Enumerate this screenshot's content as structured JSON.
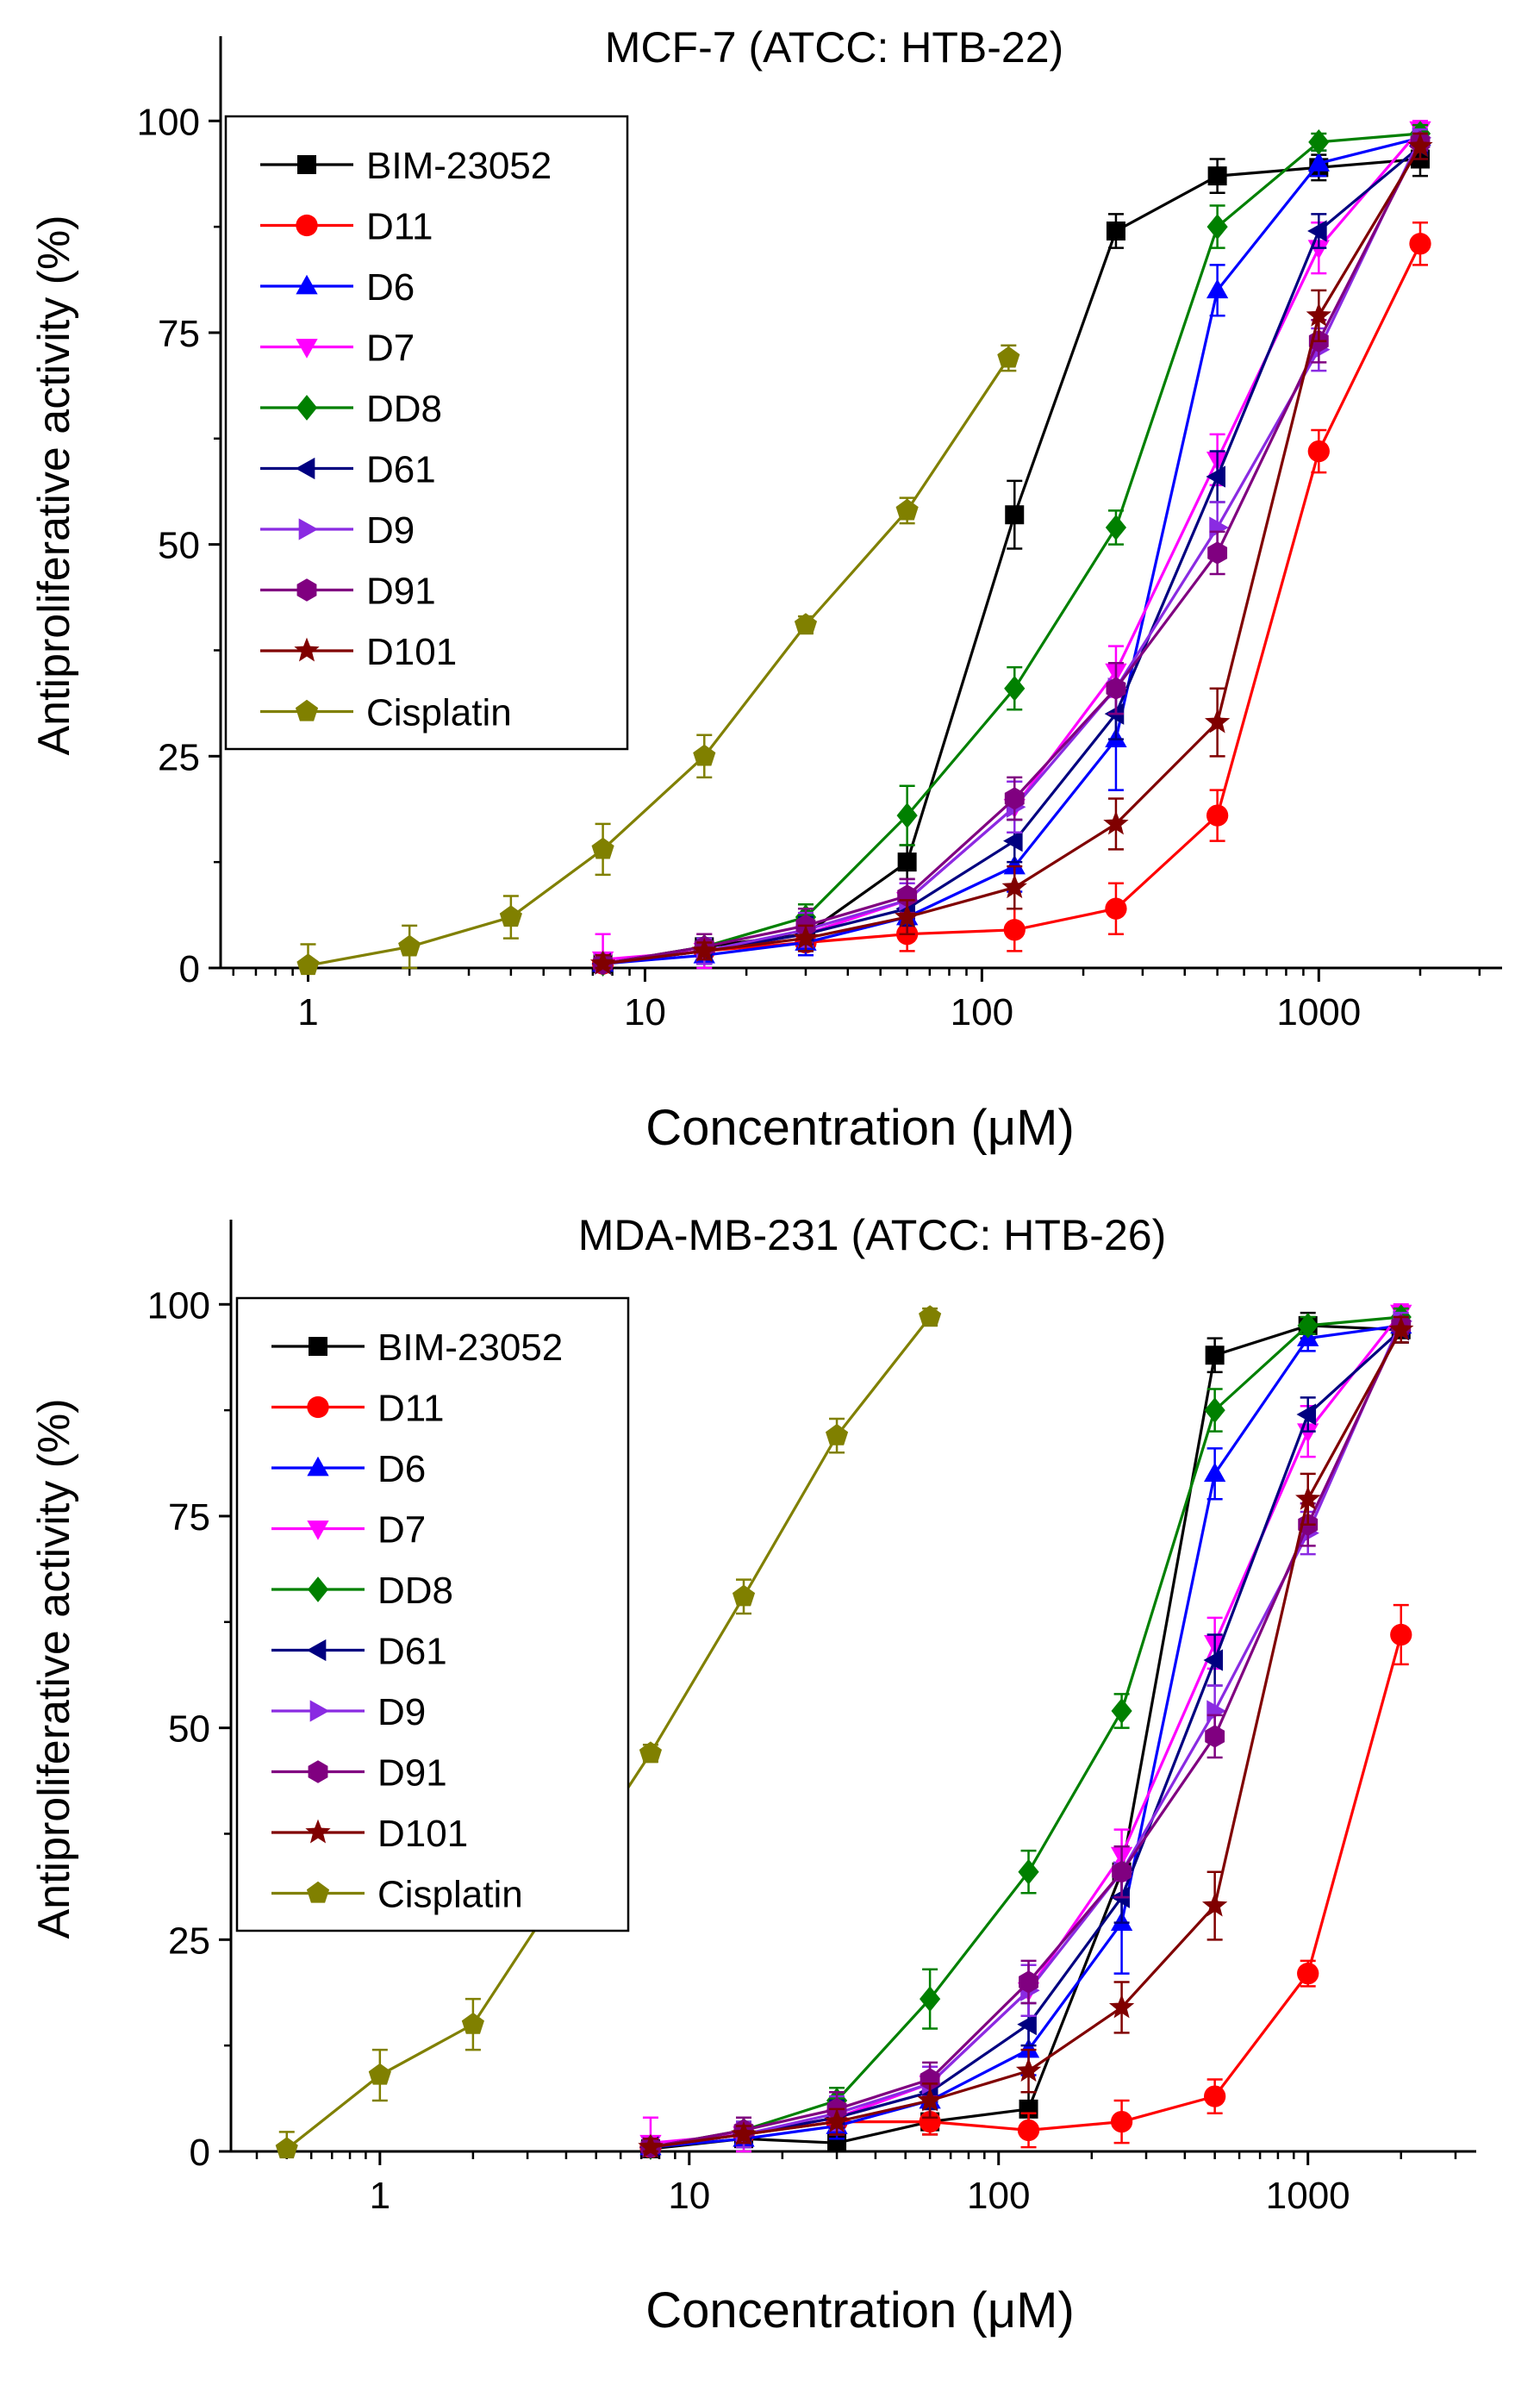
{
  "chart_data": [
    {
      "type": "line",
      "title": "MCF-7 (ATCC: HTB-22)",
      "xlabel": "Concentration (μM)",
      "ylabel": "Antiproliferative activity (%)",
      "xscale": "log",
      "xlim": [
        0.55,
        3500
      ],
      "ylim": [
        0,
        110
      ],
      "xticks": [
        1,
        10,
        100,
        1000
      ],
      "xtick_labels": [
        "1",
        "10",
        "100",
        "1000"
      ],
      "yticks": [
        0,
        25,
        50,
        75,
        100
      ],
      "ytick_labels": [
        "0",
        "25",
        "50",
        "75",
        "100"
      ],
      "legend_position": "top-left",
      "series": [
        {
          "name": "BIM-23052",
          "color": "#000000",
          "marker": "square",
          "x": [
            7.5,
            15,
            30,
            60,
            125,
            250,
            500,
            1000,
            2000
          ],
          "y": [
            0.5,
            2.5,
            4,
            12.5,
            53.5,
            87,
            93.5,
            94.5,
            95.5
          ],
          "err": [
            1,
            1,
            1.5,
            2,
            4,
            2,
            2,
            1.5,
            2
          ]
        },
        {
          "name": "D11",
          "color": "#ff0000",
          "marker": "circle",
          "x": [
            7.5,
            15,
            30,
            60,
            125,
            250,
            500,
            1000,
            2000
          ],
          "y": [
            0.5,
            2,
            3,
            4,
            4.5,
            7,
            18,
            61,
            85.5
          ],
          "err": [
            1,
            1,
            1.5,
            2,
            2.5,
            3,
            3,
            2.5,
            2.5
          ]
        },
        {
          "name": "D6",
          "color": "#0000ff",
          "marker": "triangle-up",
          "x": [
            7.5,
            15,
            30,
            60,
            125,
            250,
            500,
            1000,
            2000
          ],
          "y": [
            0.5,
            1.5,
            3,
            6,
            12,
            27,
            80,
            95,
            98
          ],
          "err": [
            1,
            1,
            1.5,
            2,
            3,
            6,
            3,
            1.5,
            1
          ]
        },
        {
          "name": "D7",
          "color": "#ff00ff",
          "marker": "triangle-down",
          "x": [
            7.5,
            15,
            30,
            60,
            125,
            250,
            500,
            1000,
            2000
          ],
          "y": [
            1,
            2,
            4,
            8,
            19,
            35,
            60,
            85,
            99
          ],
          "err": [
            3,
            2,
            2,
            2,
            3,
            3,
            3,
            3,
            1
          ]
        },
        {
          "name": "DD8",
          "color": "#008000",
          "marker": "diamond",
          "x": [
            7.5,
            15,
            30,
            60,
            125,
            250,
            500,
            1000,
            2000
          ],
          "y": [
            0.5,
            2.5,
            6,
            18,
            33,
            52,
            87.5,
            97.5,
            98.5
          ],
          "err": [
            1,
            1,
            1.5,
            3.5,
            2.5,
            2,
            2.5,
            1,
            1
          ]
        },
        {
          "name": "D61",
          "color": "#000080",
          "marker": "triangle-left",
          "x": [
            7.5,
            15,
            30,
            60,
            125,
            250,
            500,
            1000,
            2000
          ],
          "y": [
            0.5,
            2,
            4,
            7,
            15,
            30,
            58,
            87,
            97
          ],
          "err": [
            1,
            1.5,
            2,
            2,
            2.5,
            3,
            3,
            2,
            1.5
          ]
        },
        {
          "name": "D9",
          "color": "#8a2be2",
          "marker": "triangle-right",
          "x": [
            7.5,
            15,
            30,
            60,
            125,
            250,
            500,
            1000,
            2000
          ],
          "y": [
            0.5,
            2,
            4.5,
            8,
            19,
            33,
            52,
            73,
            98
          ],
          "err": [
            1,
            1.5,
            2,
            2,
            3,
            3,
            3,
            2.5,
            1
          ]
        },
        {
          "name": "D91",
          "color": "#800080",
          "marker": "hexagon",
          "x": [
            7.5,
            15,
            30,
            60,
            125,
            250,
            500,
            1000,
            2000
          ],
          "y": [
            0.5,
            2.5,
            5,
            8.5,
            20,
            33,
            49,
            74,
            97.5
          ],
          "err": [
            1,
            1.5,
            2,
            2,
            2.5,
            3,
            2.5,
            2.5,
            1
          ]
        },
        {
          "name": "D101",
          "color": "#800000",
          "marker": "star",
          "x": [
            7.5,
            15,
            30,
            60,
            125,
            250,
            500,
            1000,
            2000
          ],
          "y": [
            0.5,
            2,
            3.5,
            6,
            9.5,
            17,
            29,
            77,
            97
          ],
          "err": [
            1,
            1,
            1.5,
            2,
            2.5,
            3,
            4,
            3,
            1.5
          ]
        },
        {
          "name": "Cisplatin",
          "color": "#808000",
          "marker": "pentagon",
          "x": [
            1,
            2,
            4,
            7.5,
            15,
            30,
            60,
            120
          ],
          "y": [
            0.3,
            2.5,
            6,
            14,
            25,
            40.5,
            54,
            72
          ],
          "err": [
            2.5,
            2.5,
            2.5,
            3,
            2.5,
            1,
            1.5,
            1.5
          ]
        }
      ]
    },
    {
      "type": "line",
      "title": "MDA-MB-231 (ATCC: HTB-26)",
      "xlabel": "Concentration (μM)",
      "ylabel": "Antiproliferative activity (%)",
      "xscale": "log",
      "xlim": [
        0.33,
        3500
      ],
      "ylim": [
        0,
        110
      ],
      "xticks": [
        1,
        10,
        100,
        1000
      ],
      "xtick_labels": [
        "1",
        "10",
        "100",
        "1000"
      ],
      "yticks": [
        0,
        25,
        50,
        75,
        100
      ],
      "ytick_labels": [
        "0",
        "25",
        "50",
        "75",
        "100"
      ],
      "legend_position": "top-left",
      "series": [
        {
          "name": "BIM-23052",
          "color": "#000000",
          "marker": "square",
          "x": [
            7.5,
            15,
            30,
            60,
            125,
            250,
            500,
            1000,
            2000
          ],
          "y": [
            0.3,
            1.5,
            1,
            3.5,
            5,
            33,
            94,
            97.5,
            97
          ],
          "err": [
            1,
            1,
            1,
            1.5,
            2,
            3,
            2,
            1.5,
            1.5
          ]
        },
        {
          "name": "D11",
          "color": "#ff0000",
          "marker": "circle",
          "x": [
            7.5,
            15,
            30,
            60,
            125,
            250,
            500,
            1000,
            2000
          ],
          "y": [
            0.5,
            2,
            3.5,
            3.5,
            2.5,
            3.5,
            6.5,
            21,
            61
          ],
          "err": [
            1,
            1,
            1.5,
            1.5,
            2,
            2.5,
            2,
            1.5,
            3.5
          ]
        },
        {
          "name": "D6",
          "color": "#0000ff",
          "marker": "triangle-up",
          "x": [
            7.5,
            15,
            30,
            60,
            125,
            250,
            500,
            1000,
            2000
          ],
          "y": [
            0.5,
            1.5,
            3,
            6,
            12,
            27,
            80,
            96,
            97.5
          ],
          "err": [
            1,
            1,
            1.5,
            2,
            3,
            6,
            3,
            1.5,
            1
          ]
        },
        {
          "name": "D7",
          "color": "#ff00ff",
          "marker": "triangle-down",
          "x": [
            7.5,
            15,
            30,
            60,
            125,
            250,
            500,
            1000,
            2000
          ],
          "y": [
            1,
            2,
            4,
            8,
            19,
            35,
            60,
            85,
            99
          ],
          "err": [
            3,
            2,
            2,
            2,
            3,
            3,
            3,
            3,
            1
          ]
        },
        {
          "name": "DD8",
          "color": "#008000",
          "marker": "diamond",
          "x": [
            7.5,
            15,
            30,
            60,
            125,
            250,
            500,
            1000,
            2000
          ],
          "y": [
            0.5,
            2.5,
            6,
            18,
            33,
            52,
            87.5,
            97.5,
            98.5
          ],
          "err": [
            1,
            1,
            1.5,
            3.5,
            2.5,
            2,
            2.5,
            1,
            1
          ]
        },
        {
          "name": "D61",
          "color": "#000080",
          "marker": "triangle-left",
          "x": [
            7.5,
            15,
            30,
            60,
            125,
            250,
            500,
            1000,
            2000
          ],
          "y": [
            0.5,
            2,
            4,
            7,
            15,
            30,
            58,
            87,
            97
          ],
          "err": [
            1,
            1.5,
            2,
            2,
            2.5,
            3,
            3,
            2,
            1.5
          ]
        },
        {
          "name": "D9",
          "color": "#8a2be2",
          "marker": "triangle-right",
          "x": [
            7.5,
            15,
            30,
            60,
            125,
            250,
            500,
            1000,
            2000
          ],
          "y": [
            0.5,
            2,
            4.5,
            8,
            19,
            33,
            52,
            73,
            98
          ],
          "err": [
            1,
            1.5,
            2,
            2,
            3,
            3,
            3,
            2.5,
            1
          ]
        },
        {
          "name": "D91",
          "color": "#800080",
          "marker": "hexagon",
          "x": [
            7.5,
            15,
            30,
            60,
            125,
            250,
            500,
            1000,
            2000
          ],
          "y": [
            0.5,
            2.5,
            5,
            8.5,
            20,
            33,
            49,
            74,
            97.5
          ],
          "err": [
            1,
            1.5,
            2,
            2,
            2.5,
            3,
            2.5,
            2.5,
            1
          ]
        },
        {
          "name": "D101",
          "color": "#800000",
          "marker": "star",
          "x": [
            7.5,
            15,
            30,
            60,
            125,
            250,
            500,
            1000,
            2000
          ],
          "y": [
            0.5,
            2,
            3.5,
            6,
            9.5,
            17,
            29,
            77,
            97
          ],
          "err": [
            1,
            1,
            1.5,
            2,
            2.5,
            3,
            4,
            3,
            1.5
          ]
        },
        {
          "name": "Cisplatin",
          "color": "#808000",
          "marker": "pentagon",
          "x": [
            0.5,
            1,
            2,
            7.5,
            15,
            30,
            60
          ],
          "y": [
            0.3,
            9,
            15,
            47,
            65.5,
            84.5,
            98.5
          ],
          "err": [
            2,
            3,
            3,
            1,
            2,
            2,
            1
          ]
        }
      ]
    }
  ]
}
